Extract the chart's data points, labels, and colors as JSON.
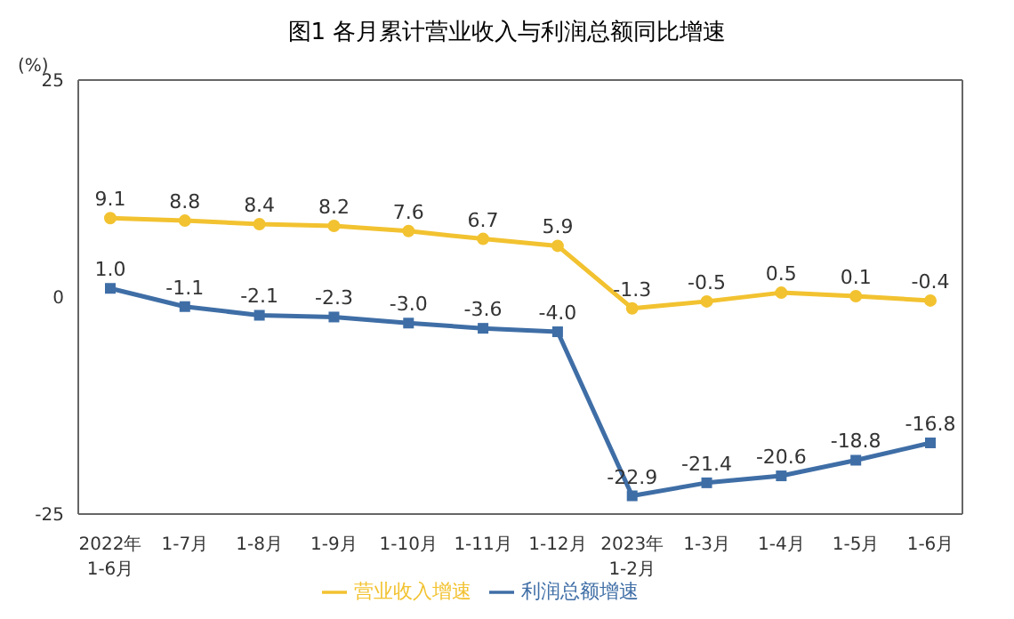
{
  "chart_data": {
    "type": "line",
    "title": "图1  各月累计营业收入与利润总额同比增速",
    "ylabel": "(%)",
    "categories": [
      "2022年\n1-6月",
      "1-7月",
      "1-8月",
      "1-9月",
      "1-10月",
      "1-11月",
      "1-12月",
      "2023年\n1-2月",
      "1-3月",
      "1-4月",
      "1-5月",
      "1-6月"
    ],
    "series": [
      {
        "name": "营业收入增速",
        "color": "#f2c230",
        "marker": "circle",
        "values": [
          9.1,
          8.8,
          8.4,
          8.2,
          7.6,
          6.7,
          5.9,
          -1.3,
          -0.5,
          0.5,
          0.1,
          -0.4
        ],
        "value_labels": [
          "9.1",
          "8.8",
          "8.4",
          "8.2",
          "7.6",
          "6.7",
          "5.9",
          "-1.3",
          "-0.5",
          "0.5",
          "0.1",
          "-0.4"
        ]
      },
      {
        "name": "利润总额增速",
        "color": "#3f6ea6",
        "marker": "square",
        "values": [
          1.0,
          -1.1,
          -2.1,
          -2.3,
          -3.0,
          -3.6,
          -4.0,
          -22.9,
          -21.4,
          -20.6,
          -18.8,
          -16.8
        ],
        "value_labels": [
          "1.0",
          "-1.1",
          "-2.1",
          "-2.3",
          "-3.0",
          "-3.6",
          "-4.0",
          "-22.9",
          "-21.4",
          "-20.6",
          "-18.8",
          "-16.8"
        ]
      }
    ],
    "ylim": [
      -25,
      25
    ],
    "yticks": [
      -25,
      0,
      25
    ],
    "legend": "bottom",
    "grid": false,
    "line_style": "solid"
  }
}
